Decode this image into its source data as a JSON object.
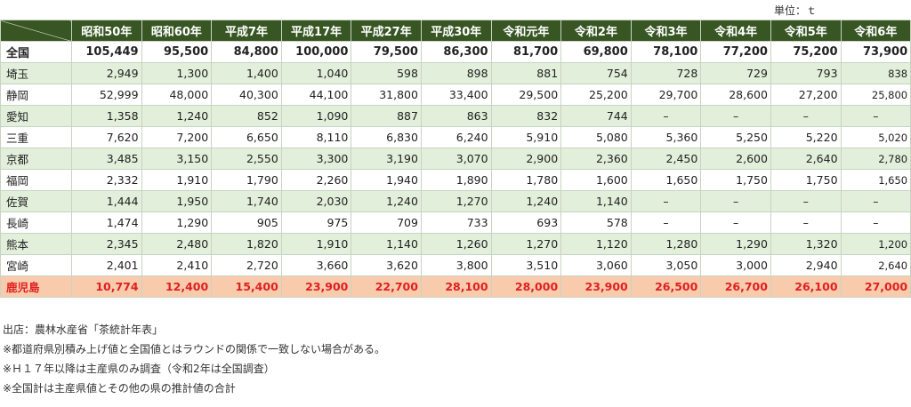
{
  "unit_label": "単位：ｔ",
  "columns": [
    "昭和50年",
    "昭和60年",
    "平成7年",
    "平成17年",
    "平成27年",
    "平成30年",
    "令和元年",
    "令和2年",
    "令和3年",
    "令和4年",
    "令和5年",
    "令和6年"
  ],
  "rows": [
    {
      "name": "全国",
      "style": "total",
      "values": [
        "105,449",
        "95,500",
        "84,800",
        "100,000",
        "79,500",
        "86,300",
        "81,700",
        "69,800",
        "78,100",
        "77,200",
        "75,200",
        "73,900"
      ]
    },
    {
      "name": "埼玉",
      "style": "alt",
      "values": [
        "2,949",
        "1,300",
        "1,400",
        "1,040",
        "598",
        "898",
        "881",
        "754",
        "728",
        "729",
        "793",
        "838"
      ]
    },
    {
      "name": "静岡",
      "style": "plain",
      "values": [
        "52,999",
        "48,000",
        "40,300",
        "44,100",
        "31,800",
        "33,400",
        "29,500",
        "25,200",
        "29,700",
        "28,600",
        "27,200",
        "25,800"
      ]
    },
    {
      "name": "愛知",
      "style": "alt",
      "values": [
        "1,358",
        "1,240",
        "852",
        "1,090",
        "887",
        "863",
        "832",
        "744",
        "–",
        "–",
        "–",
        "–"
      ]
    },
    {
      "name": "三重",
      "style": "plain",
      "values": [
        "7,620",
        "7,200",
        "6,650",
        "8,110",
        "6,830",
        "6,240",
        "5,910",
        "5,080",
        "5,360",
        "5,250",
        "5,220",
        "5,020"
      ]
    },
    {
      "name": "京都",
      "style": "alt",
      "values": [
        "3,485",
        "3,150",
        "2,550",
        "3,300",
        "3,190",
        "3,070",
        "2,900",
        "2,360",
        "2,450",
        "2,600",
        "2,640",
        "2,780"
      ]
    },
    {
      "name": "福岡",
      "style": "plain",
      "values": [
        "2,332",
        "1,910",
        "1,790",
        "2,260",
        "1,940",
        "1,890",
        "1,780",
        "1,600",
        "1,650",
        "1,750",
        "1,750",
        "1,650"
      ]
    },
    {
      "name": "佐賀",
      "style": "alt",
      "values": [
        "1,444",
        "1,950",
        "1,740",
        "2,030",
        "1,240",
        "1,270",
        "1,240",
        "1,140",
        "–",
        "–",
        "–",
        "–"
      ]
    },
    {
      "name": "長崎",
      "style": "plain",
      "values": [
        "1,474",
        "1,290",
        "905",
        "975",
        "709",
        "733",
        "693",
        "578",
        "–",
        "–",
        "–",
        "–"
      ]
    },
    {
      "name": "熊本",
      "style": "alt",
      "values": [
        "2,345",
        "2,480",
        "1,820",
        "1,910",
        "1,140",
        "1,260",
        "1,270",
        "1,120",
        "1,280",
        "1,290",
        "1,320",
        "1,200"
      ]
    },
    {
      "name": "宮崎",
      "style": "plain",
      "values": [
        "2,401",
        "2,410",
        "2,720",
        "3,660",
        "3,620",
        "3,800",
        "3,510",
        "3,060",
        "3,050",
        "3,000",
        "2,940",
        "2,640"
      ]
    },
    {
      "name": "鹿児島",
      "style": "highlight",
      "values": [
        "10,774",
        "12,400",
        "15,400",
        "23,900",
        "22,700",
        "28,100",
        "28,000",
        "23,900",
        "26,500",
        "26,700",
        "26,100",
        "27,000"
      ]
    }
  ],
  "notes": [
    "出店：農林水産省「茶統計年表」",
    "※都道府県別積み上げ値と全国値とはラウンドの関係で一致しない場合がある。",
    "※Ｈ１７年以降は主産県のみ調査（令和2年は全国調査）",
    "※全国計は主産県値とその他の県の推計値の合計"
  ],
  "colors": {
    "header_bg": "#375623",
    "alt_row_bg": "#e2efda",
    "highlight_row_bg": "#f8cbad",
    "highlight_text": "#e02020"
  }
}
